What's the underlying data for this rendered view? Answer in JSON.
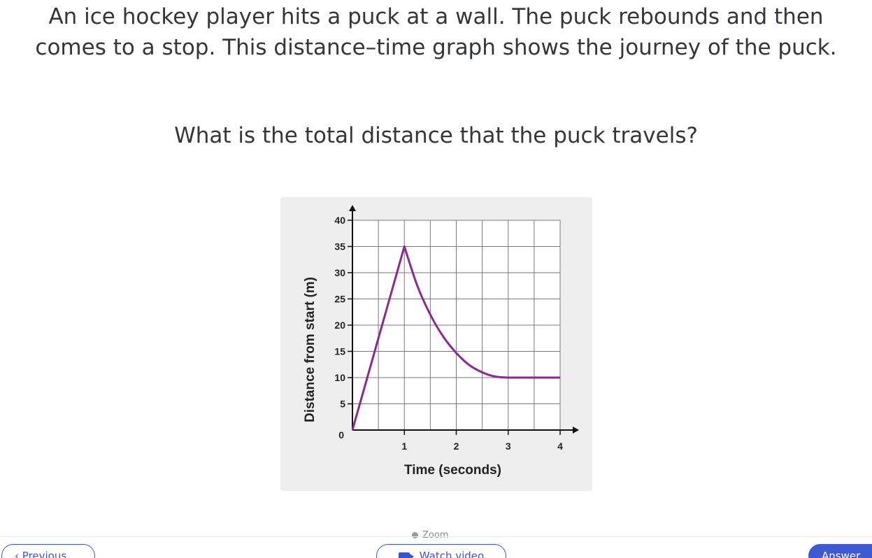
{
  "question": {
    "text": "An ice hockey player hits a puck at a wall. The puck rebounds and then comes to a stop. This distance–time graph shows the journey of the puck.",
    "prompt": "What is the total distance that the puck travels?"
  },
  "chart_data": {
    "type": "line",
    "xlabel": "Time (seconds)",
    "ylabel": "Distance from start (m)",
    "xlim": [
      0,
      4
    ],
    "ylim": [
      0,
      40
    ],
    "x_ticks": [
      "1",
      "2",
      "3",
      "4"
    ],
    "y_ticks": [
      "0",
      "5",
      "10",
      "15",
      "20",
      "25",
      "30",
      "35",
      "40"
    ],
    "grid": true,
    "series": [
      {
        "color": "#8b2a8e",
        "x": [
          0,
          1,
          1.25,
          1.5,
          1.75,
          2,
          2.25,
          2.5,
          2.75,
          3,
          4
        ],
        "y": [
          0,
          35,
          27.5,
          22,
          17.8,
          14.7,
          12.4,
          11,
          10.2,
          10,
          10
        ]
      }
    ]
  },
  "footer": {
    "zoom_label": "Zoom",
    "previous_label": "‹ Previous",
    "watch_video_label": "Watch video",
    "answer_label": "Answer"
  }
}
